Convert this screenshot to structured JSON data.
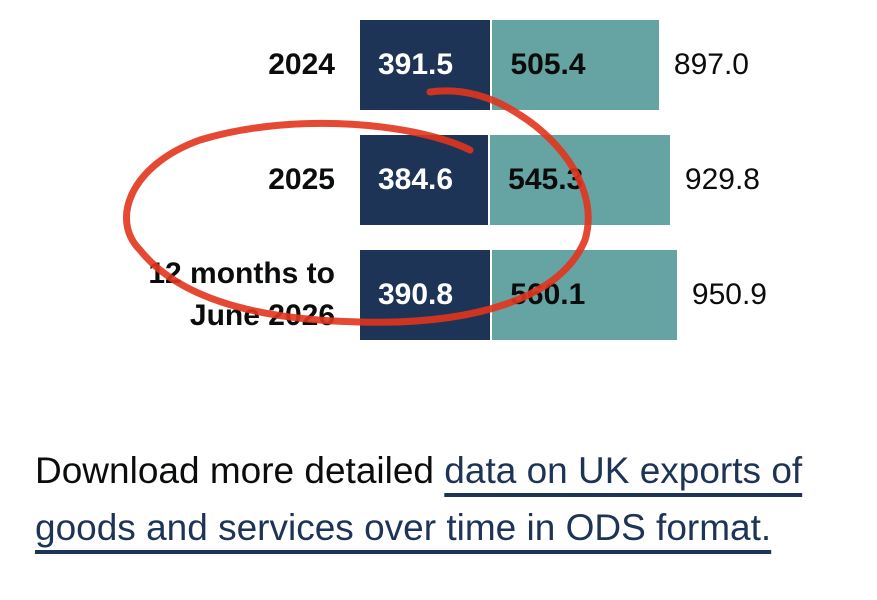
{
  "chart_data": {
    "type": "stacked-bar",
    "categories": [
      "2024",
      "2025",
      "12 months to June 2026"
    ],
    "series": [
      {
        "color": "#1d3456",
        "values": [
          391.5,
          384.6,
          390.8
        ]
      },
      {
        "color": "#66a3a3",
        "values": [
          505.4,
          545.3,
          560.1
        ]
      }
    ],
    "totals": {
      "values": [
        897.0,
        929.8,
        950.9
      ],
      "value_labels": [
        "897.0",
        "929.8",
        "950.9"
      ]
    }
  },
  "paragraph": {
    "text": "Download more detailed ",
    "link": "data on UK exports of goods and services over time in ODS format."
  }
}
